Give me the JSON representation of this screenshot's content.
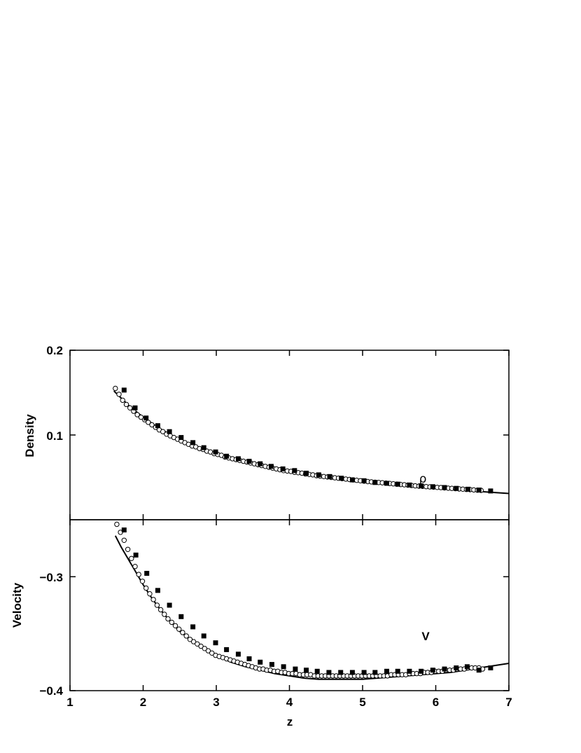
{
  "chart_data": [
    {
      "type": "scatter",
      "panel": "top",
      "title": "",
      "xlabel": "",
      "ylabel": "Density",
      "xlim": [
        1,
        7
      ],
      "ylim": [
        0.0,
        0.2
      ],
      "yticks": [
        0.2,
        0.1
      ],
      "ytick_labels": [
        "0.2",
        "0.1"
      ],
      "annotation": "ρ",
      "series": [
        {
          "style": "line",
          "x": [
            1.6,
            1.8,
            2.0,
            2.2,
            2.4,
            2.6,
            2.8,
            3.0,
            3.2,
            3.4,
            3.6,
            3.8,
            4.0,
            4.25,
            4.5,
            4.75,
            5.0,
            5.25,
            5.5,
            5.75,
            6.0,
            6.25,
            6.5,
            6.75,
            7.0
          ],
          "y": [
            0.152,
            0.135,
            0.121,
            0.109,
            0.099,
            0.091,
            0.084,
            0.078,
            0.073,
            0.068,
            0.064,
            0.061,
            0.058,
            0.054,
            0.0505,
            0.0475,
            0.045,
            0.0425,
            0.0405,
            0.0385,
            0.037,
            0.0355,
            0.034,
            0.0325,
            0.031
          ]
        },
        {
          "style": "open-circle",
          "x": [
            1.62,
            1.67,
            1.72,
            1.77,
            1.82,
            1.87,
            1.92,
            1.97,
            2.02,
            2.07,
            2.12,
            2.17,
            2.22,
            2.27,
            2.32,
            2.37,
            2.42,
            2.47,
            2.52,
            2.57,
            2.62,
            2.67,
            2.72,
            2.77,
            2.82,
            2.87,
            2.92,
            2.97,
            3.02,
            3.07,
            3.12,
            3.17,
            3.22,
            3.27,
            3.32,
            3.37,
            3.42,
            3.47,
            3.52,
            3.57,
            3.62,
            3.67,
            3.72,
            3.77,
            3.82,
            3.87,
            3.92,
            3.97,
            4.02,
            4.07,
            4.12,
            4.17,
            4.22,
            4.27,
            4.32,
            4.37,
            4.42,
            4.47,
            4.52,
            4.57,
            4.62,
            4.67,
            4.72,
            4.77,
            4.82,
            4.87,
            4.92,
            4.97,
            5.02,
            5.07,
            5.12,
            5.17,
            5.22,
            5.27,
            5.32,
            5.37,
            5.42,
            5.47,
            5.52,
            5.57,
            5.62,
            5.67,
            5.72,
            5.77,
            5.82,
            5.87,
            5.92,
            5.97,
            6.02,
            6.07,
            6.12,
            6.17,
            6.22,
            6.27,
            6.32,
            6.37,
            6.42,
            6.47,
            6.52,
            6.57,
            6.62
          ],
          "y": [
            0.155,
            0.148,
            0.141,
            0.136,
            0.132,
            0.128,
            0.124,
            0.121,
            0.118,
            0.115,
            0.112,
            0.109,
            0.106,
            0.104,
            0.101,
            0.099,
            0.097,
            0.095,
            0.093,
            0.091,
            0.089,
            0.087,
            0.086,
            0.084,
            0.083,
            0.081,
            0.08,
            0.078,
            0.077,
            0.076,
            0.074,
            0.073,
            0.072,
            0.071,
            0.07,
            0.069,
            0.068,
            0.067,
            0.066,
            0.065,
            0.064,
            0.063,
            0.062,
            0.061,
            0.06,
            0.059,
            0.058,
            0.0575,
            0.057,
            0.056,
            0.0555,
            0.055,
            0.054,
            0.0535,
            0.053,
            0.052,
            0.0515,
            0.051,
            0.0505,
            0.05,
            0.0495,
            0.049,
            0.0485,
            0.048,
            0.0475,
            0.047,
            0.0465,
            0.046,
            0.0455,
            0.045,
            0.0447,
            0.0443,
            0.044,
            0.0436,
            0.0432,
            0.0428,
            0.0424,
            0.042,
            0.0416,
            0.0412,
            0.0408,
            0.0404,
            0.04,
            0.0397,
            0.0394,
            0.0391,
            0.0388,
            0.0385,
            0.0382,
            0.0379,
            0.0376,
            0.0373,
            0.037,
            0.0367,
            0.0364,
            0.0361,
            0.0358,
            0.0355,
            0.0352,
            0.0349,
            0.0346
          ]
        },
        {
          "style": "filled-square",
          "x": [
            1.74,
            1.89,
            2.04,
            2.2,
            2.36,
            2.52,
            2.68,
            2.83,
            2.99,
            3.14,
            3.3,
            3.45,
            3.6,
            3.75,
            3.91,
            4.07,
            4.23,
            4.4,
            4.55,
            4.71,
            4.86,
            5.02,
            5.17,
            5.33,
            5.48,
            5.64,
            5.8,
            5.96,
            6.12,
            6.28,
            6.44,
            6.59,
            6.75
          ],
          "y": [
            0.153,
            0.132,
            0.12,
            0.111,
            0.104,
            0.097,
            0.091,
            0.085,
            0.08,
            0.075,
            0.072,
            0.069,
            0.066,
            0.063,
            0.06,
            0.058,
            0.055,
            0.053,
            0.051,
            0.049,
            0.047,
            0.046,
            0.044,
            0.043,
            0.042,
            0.041,
            0.04,
            0.039,
            0.038,
            0.037,
            0.036,
            0.035,
            0.034
          ]
        }
      ]
    },
    {
      "type": "scatter",
      "panel": "bottom",
      "title": "",
      "xlabel": "z",
      "ylabel": "Velocity",
      "xlim": [
        1,
        7
      ],
      "ylim": [
        -0.4,
        -0.25
      ],
      "xticks": [
        1,
        2,
        3,
        4,
        5,
        6,
        7
      ],
      "xtick_labels": [
        "1",
        "2",
        "3",
        "4",
        "5",
        "6",
        "7"
      ],
      "yticks": [
        -0.3,
        -0.4
      ],
      "ytick_labels": [
        "−0.3",
        "−0.4"
      ],
      "annotation": "V",
      "series": [
        {
          "style": "line",
          "x": [
            1.62,
            1.7,
            1.8,
            1.9,
            2.0,
            2.1,
            2.2,
            2.3,
            2.4,
            2.5,
            2.6,
            2.7,
            2.8,
            2.9,
            3.0,
            3.2,
            3.4,
            3.6,
            3.8,
            4.0,
            4.2,
            4.4,
            4.6,
            4.8,
            5.0,
            5.2,
            5.4,
            5.6,
            5.8,
            6.0,
            6.2,
            6.4,
            6.6,
            6.8,
            7.0
          ],
          "y": [
            -0.264,
            -0.274,
            -0.285,
            -0.296,
            -0.307,
            -0.317,
            -0.326,
            -0.334,
            -0.341,
            -0.348,
            -0.353,
            -0.358,
            -0.362,
            -0.366,
            -0.369,
            -0.375,
            -0.379,
            -0.382,
            -0.385,
            -0.387,
            -0.389,
            -0.39,
            -0.39,
            -0.39,
            -0.39,
            -0.389,
            -0.388,
            -0.387,
            -0.386,
            -0.385,
            -0.384,
            -0.382,
            -0.38,
            -0.378,
            -0.376
          ]
        },
        {
          "style": "open-circle",
          "x": [
            1.64,
            1.69,
            1.74,
            1.79,
            1.84,
            1.89,
            1.94,
            1.99,
            2.04,
            2.09,
            2.14,
            2.19,
            2.24,
            2.29,
            2.34,
            2.39,
            2.44,
            2.49,
            2.54,
            2.59,
            2.64,
            2.69,
            2.74,
            2.79,
            2.84,
            2.89,
            2.94,
            2.99,
            3.04,
            3.09,
            3.14,
            3.19,
            3.24,
            3.29,
            3.34,
            3.39,
            3.44,
            3.49,
            3.54,
            3.59,
            3.64,
            3.69,
            3.74,
            3.79,
            3.84,
            3.89,
            3.94,
            3.99,
            4.04,
            4.09,
            4.14,
            4.19,
            4.24,
            4.29,
            4.34,
            4.39,
            4.44,
            4.49,
            4.54,
            4.59,
            4.64,
            4.69,
            4.74,
            4.79,
            4.84,
            4.89,
            4.94,
            4.99,
            5.04,
            5.09,
            5.14,
            5.19,
            5.24,
            5.29,
            5.34,
            5.39,
            5.44,
            5.49,
            5.54,
            5.59,
            5.64,
            5.69,
            5.74,
            5.79,
            5.84,
            5.89,
            5.94,
            5.99,
            6.04,
            6.09,
            6.14,
            6.19,
            6.24,
            6.29,
            6.34,
            6.39,
            6.44,
            6.49,
            6.54,
            6.59,
            6.64
          ],
          "y": [
            -0.254,
            -0.261,
            -0.268,
            -0.276,
            -0.284,
            -0.291,
            -0.298,
            -0.304,
            -0.31,
            -0.315,
            -0.32,
            -0.325,
            -0.329,
            -0.333,
            -0.337,
            -0.34,
            -0.343,
            -0.346,
            -0.349,
            -0.352,
            -0.355,
            -0.357,
            -0.359,
            -0.361,
            -0.363,
            -0.365,
            -0.367,
            -0.369,
            -0.37,
            -0.371,
            -0.372,
            -0.373,
            -0.374,
            -0.375,
            -0.376,
            -0.377,
            -0.378,
            -0.379,
            -0.38,
            -0.381,
            -0.381,
            -0.382,
            -0.382,
            -0.383,
            -0.383,
            -0.384,
            -0.384,
            -0.385,
            -0.385,
            -0.385,
            -0.386,
            -0.386,
            -0.386,
            -0.386,
            -0.387,
            -0.387,
            -0.387,
            -0.387,
            -0.387,
            -0.387,
            -0.387,
            -0.387,
            -0.387,
            -0.387,
            -0.387,
            -0.387,
            -0.387,
            -0.387,
            -0.387,
            -0.387,
            -0.387,
            -0.387,
            -0.387,
            -0.387,
            -0.387,
            -0.386,
            -0.386,
            -0.386,
            -0.386,
            -0.386,
            -0.385,
            -0.385,
            -0.385,
            -0.385,
            -0.384,
            -0.384,
            -0.384,
            -0.383,
            -0.383,
            -0.383,
            -0.382,
            -0.382,
            -0.382,
            -0.381,
            -0.381,
            -0.381,
            -0.38,
            -0.38,
            -0.38,
            -0.38,
            -0.381
          ]
        },
        {
          "style": "filled-square",
          "x": [
            1.74,
            1.9,
            2.05,
            2.2,
            2.36,
            2.52,
            2.68,
            2.83,
            2.99,
            3.14,
            3.3,
            3.45,
            3.6,
            3.76,
            3.92,
            4.08,
            4.23,
            4.38,
            4.54,
            4.7,
            4.86,
            5.02,
            5.17,
            5.33,
            5.48,
            5.64,
            5.8,
            5.96,
            6.12,
            6.28,
            6.43,
            6.59,
            6.75
          ],
          "y": [
            -0.259,
            -0.281,
            -0.297,
            -0.312,
            -0.325,
            -0.335,
            -0.344,
            -0.352,
            -0.358,
            -0.364,
            -0.368,
            -0.372,
            -0.375,
            -0.377,
            -0.379,
            -0.381,
            -0.382,
            -0.383,
            -0.384,
            -0.384,
            -0.384,
            -0.384,
            -0.384,
            -0.383,
            -0.383,
            -0.383,
            -0.383,
            -0.382,
            -0.381,
            -0.38,
            -0.379,
            -0.382,
            -0.38
          ]
        }
      ]
    }
  ]
}
